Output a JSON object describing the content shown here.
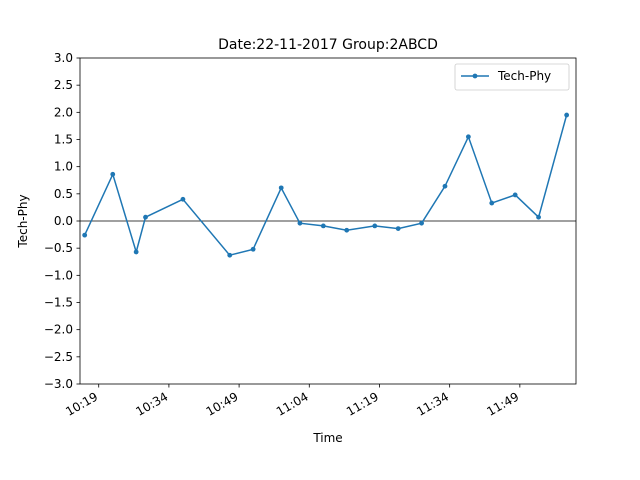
{
  "chart_data": {
    "type": "line",
    "title": "Date:22-11-2017 Group:2ABCD",
    "xlabel": "Time",
    "ylabel": "Tech-Phy",
    "ylim": [
      -3.0,
      3.0
    ],
    "xlim": [
      "10:15",
      "12:01"
    ],
    "yticks": [
      "3.0",
      "2.5",
      "2.0",
      "1.5",
      "1.0",
      "0.5",
      "0.0",
      "−0.5",
      "−1.0",
      "−1.5",
      "−2.0",
      "−2.5",
      "−3.0"
    ],
    "xticks": [
      "10:19",
      "10:34",
      "10:49",
      "11:04",
      "11:19",
      "11:34",
      "11:49"
    ],
    "zero_line": true,
    "grid": false,
    "legend": {
      "position": "top-right"
    },
    "series": [
      {
        "name": "Tech-Phy",
        "color": "#1f77b4",
        "marker": "circle",
        "x": [
          "10:16",
          "10:22",
          "10:27",
          "10:29",
          "10:37",
          "10:47",
          "10:52",
          "10:58",
          "11:02",
          "11:07",
          "11:12",
          "11:18",
          "11:23",
          "11:28",
          "11:33",
          "11:38",
          "11:43",
          "11:48",
          "11:53",
          "11:59"
        ],
        "values": [
          -0.26,
          0.86,
          -0.57,
          0.07,
          0.4,
          -0.63,
          -0.52,
          0.61,
          -0.04,
          -0.09,
          -0.17,
          -0.09,
          -0.14,
          -0.04,
          0.64,
          1.55,
          0.33,
          0.48,
          0.07,
          1.95
        ]
      }
    ]
  }
}
